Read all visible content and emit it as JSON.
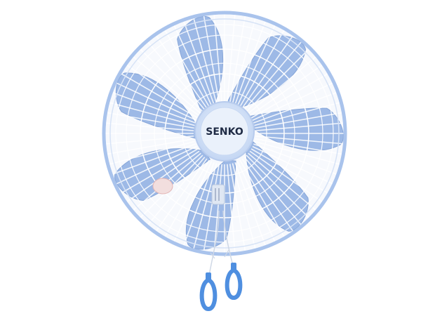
{
  "product": {
    "brand_text": "SENKO"
  },
  "colors": {
    "blade": "#9db9e6",
    "blade_edge": "#86a5d8",
    "grille_rim": "#a9c3ec",
    "grille_wire": "#ffffff",
    "hub": "#cfe0f7",
    "pull_ring": "#4f8fe0",
    "background": "#ffffff"
  },
  "icons": [
    "fan-blade-icon",
    "pull-ring-icon"
  ]
}
